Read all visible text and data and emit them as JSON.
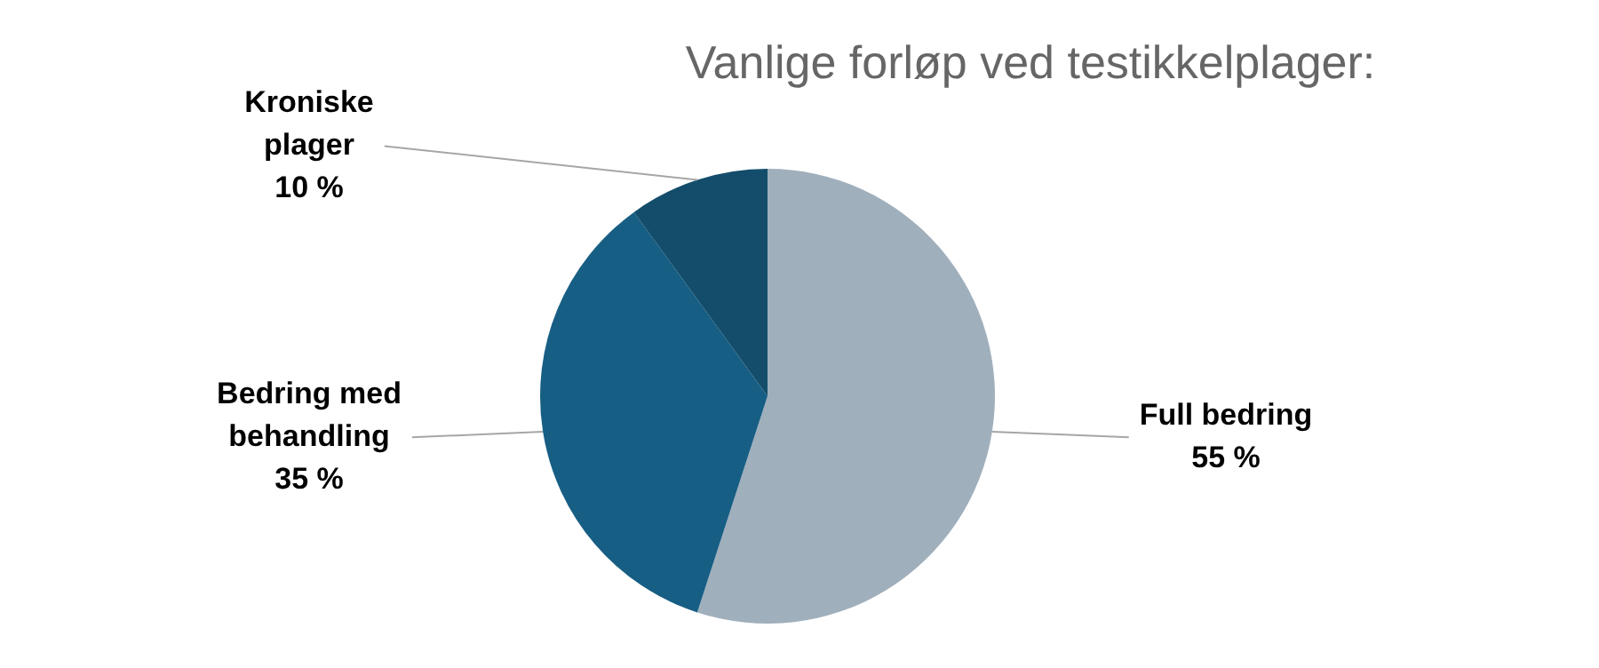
{
  "chart_data": {
    "type": "pie",
    "title": "Vanlige forløp ved testikkelplager:",
    "categories": [
      "Full bedring",
      "Bedring med behandling",
      "Kroniske plager"
    ],
    "values": [
      55,
      35,
      10
    ],
    "colors": [
      "#a0afbc",
      "#175e84",
      "#134d6b"
    ],
    "value_labels": [
      "55 %",
      "35 %",
      "10 %"
    ],
    "legend": false
  }
}
